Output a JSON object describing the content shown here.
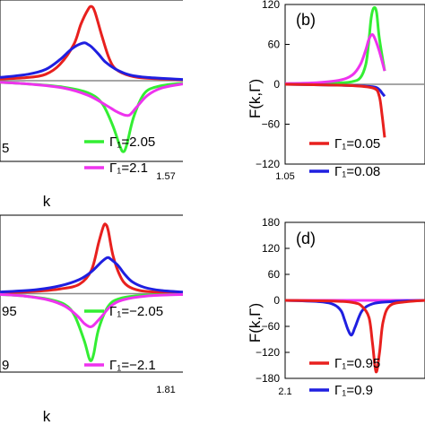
{
  "chart_data": [
    {
      "panel": "a",
      "type": "line",
      "title": "",
      "xlabel": "k",
      "ylabel": "",
      "xlim": [
        1.05,
        1.57
      ],
      "ylim": [
        -100,
        100
      ],
      "x_tick_labels": [
        "1.57"
      ],
      "y_tick_labels": [],
      "panel_label": "",
      "zero_line": true,
      "legend": [
        {
          "text": "5",
          "color": ""
        },
        {
          "text": "Γ₁=2.05",
          "color": "#33ee33"
        },
        {
          "text": "Γ₁=2.1",
          "color": "#ee33ee"
        }
      ],
      "series": [
        {
          "color": "#e8201e",
          "x": [
            1.05,
            1.13,
            1.18,
            1.22,
            1.26,
            1.28,
            1.3,
            1.31,
            1.32,
            1.34,
            1.36,
            1.38,
            1.42,
            1.47,
            1.57
          ],
          "y": [
            2,
            4,
            8,
            20,
            45,
            70,
            88,
            92,
            85,
            55,
            28,
            14,
            6,
            3,
            1
          ]
        },
        {
          "color": "#1f1fe0",
          "x": [
            1.05,
            1.13,
            1.18,
            1.22,
            1.25,
            1.27,
            1.29,
            1.3,
            1.31,
            1.33,
            1.35,
            1.38,
            1.42,
            1.47,
            1.57
          ],
          "y": [
            4,
            8,
            14,
            26,
            38,
            44,
            47,
            45,
            42,
            33,
            23,
            14,
            7,
            4,
            1.5
          ]
        },
        {
          "color": "#33ee33",
          "x": [
            1.05,
            1.13,
            1.23,
            1.3,
            1.34,
            1.37,
            1.39,
            1.4,
            1.41,
            1.43,
            1.46,
            1.5,
            1.57
          ],
          "y": [
            -2,
            -4,
            -8,
            -15,
            -28,
            -55,
            -80,
            -88,
            -80,
            -45,
            -16,
            -7,
            -3
          ]
        },
        {
          "color": "#ee33ee",
          "x": [
            1.05,
            1.13,
            1.23,
            1.3,
            1.35,
            1.38,
            1.4,
            1.41,
            1.42,
            1.44,
            1.47,
            1.51,
            1.57
          ],
          "y": [
            -2,
            -4,
            -9,
            -18,
            -30,
            -38,
            -42,
            -43,
            -42,
            -32,
            -18,
            -9,
            -4
          ]
        }
      ]
    },
    {
      "panel": "b",
      "type": "line",
      "title": "",
      "xlabel": "",
      "ylabel": "F(k,Γ)",
      "xlim": [
        1.05,
        1.57
      ],
      "ylim": [
        -120,
        120
      ],
      "x_tick_labels": [
        "1.05"
      ],
      "y_tick_labels": [
        "120",
        "60",
        "0",
        "−60",
        "−120"
      ],
      "y_tick_values": [
        120,
        60,
        0,
        -60,
        -120
      ],
      "panel_label": "(b)",
      "zero_line": true,
      "legend": [
        {
          "text": "Γ₁=0.05",
          "color": "#e8201e"
        },
        {
          "text": "Γ₁=0.08",
          "color": "#1f1fe0"
        }
      ],
      "series": [
        {
          "color": "#33ee33",
          "x": [
            1.05,
            1.15,
            1.25,
            1.3,
            1.33,
            1.35,
            1.36,
            1.37,
            1.38,
            1.39,
            1.4,
            1.42
          ],
          "y": [
            0.5,
            1,
            2,
            4,
            10,
            30,
            60,
            100,
            115,
            108,
            70,
            20
          ]
        },
        {
          "color": "#ee33ee",
          "x": [
            1.05,
            1.15,
            1.25,
            1.3,
            1.33,
            1.35,
            1.36,
            1.37,
            1.38,
            1.4,
            1.42
          ],
          "y": [
            1,
            2,
            6,
            14,
            30,
            52,
            66,
            74,
            72,
            50,
            20
          ]
        },
        {
          "color": "#1f1fe0",
          "x": [
            1.05,
            1.2,
            1.3,
            1.38,
            1.4,
            1.41,
            1.42
          ],
          "y": [
            0,
            -1,
            -2,
            -4,
            -8,
            -13,
            -18
          ]
        },
        {
          "color": "#e8201e",
          "x": [
            1.05,
            1.2,
            1.3,
            1.38,
            1.4,
            1.41,
            1.42
          ],
          "y": [
            0,
            -1,
            -2,
            -6,
            -18,
            -45,
            -80
          ]
        }
      ]
    },
    {
      "panel": "c",
      "type": "line",
      "title": "",
      "xlabel": "k",
      "ylabel": "",
      "xlim": [
        1.05,
        1.81
      ],
      "ylim": [
        -100,
        100
      ],
      "x_tick_labels": [
        "1.81"
      ],
      "y_tick_labels": [],
      "panel_label": "",
      "zero_line": true,
      "legend": [
        {
          "text": "95",
          "color": ""
        },
        {
          "text": "9",
          "color": ""
        },
        {
          "text": "Γ₁=−2.05",
          "color": "#33ee33"
        },
        {
          "text": "Γ₁=−2.1",
          "color": "#ee33ee"
        }
      ],
      "series": [
        {
          "color": "#e8201e",
          "x": [
            1.05,
            1.2,
            1.3,
            1.38,
            1.43,
            1.46,
            1.48,
            1.49,
            1.5,
            1.52,
            1.55,
            1.58,
            1.63,
            1.7,
            1.81
          ],
          "y": [
            1,
            3,
            6,
            12,
            30,
            65,
            86,
            88,
            80,
            48,
            22,
            10,
            4,
            2,
            1
          ]
        },
        {
          "color": "#1f1fe0",
          "x": [
            1.05,
            1.2,
            1.3,
            1.38,
            1.43,
            1.47,
            1.49,
            1.5,
            1.51,
            1.54,
            1.57,
            1.6,
            1.65,
            1.72,
            1.81
          ],
          "y": [
            2,
            5,
            10,
            18,
            28,
            40,
            45,
            46,
            44,
            36,
            24,
            15,
            8,
            4,
            2
          ]
        },
        {
          "color": "#33ee33",
          "x": [
            1.05,
            1.15,
            1.25,
            1.32,
            1.36,
            1.4,
            1.42,
            1.43,
            1.44,
            1.46,
            1.5,
            1.55,
            1.65,
            1.81
          ],
          "y": [
            -1,
            -3,
            -7,
            -14,
            -28,
            -60,
            -82,
            -85,
            -76,
            -45,
            -16,
            -6,
            -2,
            -1
          ]
        },
        {
          "color": "#ee33ee",
          "x": [
            1.05,
            1.15,
            1.25,
            1.32,
            1.37,
            1.4,
            1.42,
            1.43,
            1.44,
            1.47,
            1.51,
            1.56,
            1.66,
            1.81
          ],
          "y": [
            -1,
            -3,
            -8,
            -16,
            -28,
            -38,
            -42,
            -42,
            -40,
            -30,
            -16,
            -8,
            -3,
            -1
          ]
        }
      ]
    },
    {
      "panel": "d",
      "type": "line",
      "title": "",
      "xlabel": "",
      "ylabel": "F(k,Γ)",
      "xlim": [
        2.1,
        2.5
      ],
      "ylim": [
        -180,
        180
      ],
      "x_tick_labels": [
        "2.1"
      ],
      "y_tick_labels": [
        "180",
        "120",
        "60",
        "0",
        "−60",
        "−120",
        "−180"
      ],
      "y_tick_values": [
        180,
        120,
        60,
        0,
        -60,
        -120,
        -180
      ],
      "panel_label": "(d)",
      "zero_line": true,
      "legend": [
        {
          "text": "Γ₁=0.95",
          "color": "#e8201e"
        },
        {
          "text": "Γ₁=0.9",
          "color": "#1f1fe0"
        }
      ],
      "series": [
        {
          "color": "#33ee33",
          "x": [
            2.1,
            2.2,
            2.3,
            2.4,
            2.5
          ],
          "y": [
            0,
            0,
            0,
            0,
            0
          ]
        },
        {
          "color": "#ee33ee",
          "x": [
            2.1,
            2.2,
            2.3,
            2.4,
            2.5
          ],
          "y": [
            0,
            0,
            0,
            0,
            0
          ]
        },
        {
          "color": "#1f1fe0",
          "x": [
            2.1,
            2.2,
            2.24,
            2.26,
            2.27,
            2.28,
            2.29,
            2.3,
            2.32,
            2.35,
            2.4,
            2.45,
            2.5
          ],
          "y": [
            0,
            -3,
            -10,
            -24,
            -45,
            -68,
            -80,
            -62,
            -24,
            -8,
            -3,
            -1,
            0
          ]
        },
        {
          "color": "#e8201e",
          "x": [
            2.1,
            2.25,
            2.3,
            2.32,
            2.34,
            2.35,
            2.36,
            2.37,
            2.38,
            2.4,
            2.45,
            2.5
          ],
          "y": [
            0,
            -2,
            -6,
            -14,
            -40,
            -100,
            -165,
            -120,
            -50,
            -12,
            -3,
            0
          ]
        }
      ]
    }
  ]
}
